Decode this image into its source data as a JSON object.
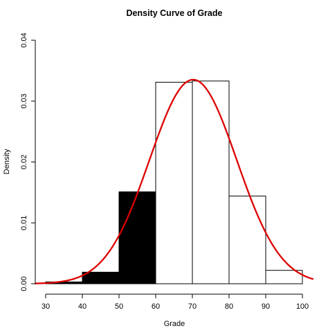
{
  "chart_data": {
    "type": "bar",
    "title": "Density Curve of Grade",
    "xlabel": "Grade",
    "ylabel": "Density",
    "xlim": [
      30,
      100
    ],
    "ylim": [
      0,
      0.04
    ],
    "x_ticks": [
      30,
      40,
      50,
      60,
      70,
      80,
      90,
      100
    ],
    "y_ticks": [
      "0.00",
      "0.01",
      "0.02",
      "0.03",
      "0.04"
    ],
    "bins": [
      {
        "start": 30,
        "end": 40,
        "density": 0.0003,
        "fill": "#000000"
      },
      {
        "start": 40,
        "end": 50,
        "density": 0.0019,
        "fill": "#000000"
      },
      {
        "start": 50,
        "end": 60,
        "density": 0.0151,
        "fill": "#000000"
      },
      {
        "start": 60,
        "end": 70,
        "density": 0.0331,
        "fill": "#ffffff"
      },
      {
        "start": 70,
        "end": 80,
        "density": 0.0333,
        "fill": "#ffffff"
      },
      {
        "start": 80,
        "end": 90,
        "density": 0.0144,
        "fill": "#ffffff"
      },
      {
        "start": 90,
        "end": 100,
        "density": 0.0022,
        "fill": "#ffffff"
      }
    ],
    "density_curve": {
      "distribution": "normal",
      "mean": 70.2,
      "sd": 11.9,
      "x_range": [
        27,
        103
      ],
      "color": "#dd0000"
    },
    "grid": false,
    "legend": "none"
  }
}
